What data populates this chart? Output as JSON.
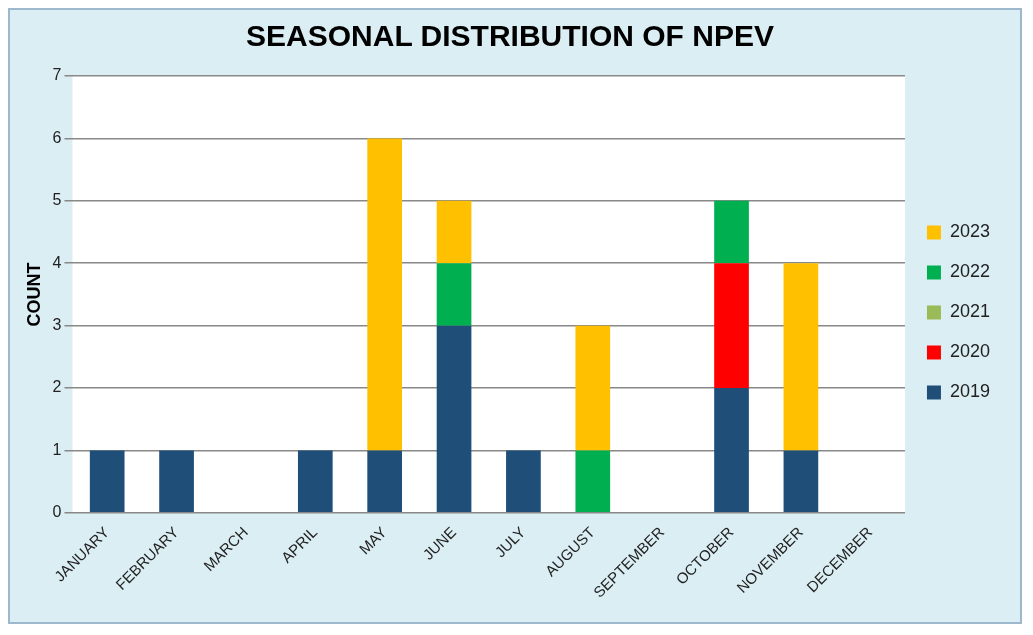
{
  "chart_data": {
    "type": "bar",
    "title": "SEASONAL DISTRIBUTION OF NPEV",
    "ylabel": "COUNT",
    "stacked": true,
    "categories": [
      "JANUARY",
      "FEBRUARY",
      "MARCH",
      "APRIL",
      "MAY",
      "JUNE",
      "JULY",
      "AUGUST",
      "SEPTEMBER",
      "OCTOBER",
      "NOVEMBER",
      "DECEMBER"
    ],
    "series": [
      {
        "name": "2019",
        "color": "#1f4e79",
        "values": [
          1,
          1,
          0,
          1,
          1,
          3,
          1,
          0,
          0,
          2,
          1,
          0
        ]
      },
      {
        "name": "2020",
        "color": "#ff0000",
        "values": [
          0,
          0,
          0,
          0,
          0,
          0,
          0,
          0,
          0,
          2,
          0,
          0
        ]
      },
      {
        "name": "2021",
        "color": "#9bbb59",
        "values": [
          0,
          0,
          0,
          0,
          0,
          0,
          0,
          0,
          0,
          0,
          0,
          0
        ]
      },
      {
        "name": "2022",
        "color": "#00b050",
        "values": [
          0,
          0,
          0,
          0,
          0,
          1,
          0,
          1,
          0,
          1,
          0,
          0
        ]
      },
      {
        "name": "2023",
        "color": "#ffc000",
        "values": [
          0,
          0,
          0,
          0,
          5,
          1,
          0,
          2,
          0,
          0,
          3,
          0
        ]
      }
    ],
    "ylim": [
      0,
      7
    ],
    "yticks": [
      0,
      1,
      2,
      3,
      4,
      5,
      6,
      7
    ],
    "grid": "y",
    "legend": "right"
  }
}
